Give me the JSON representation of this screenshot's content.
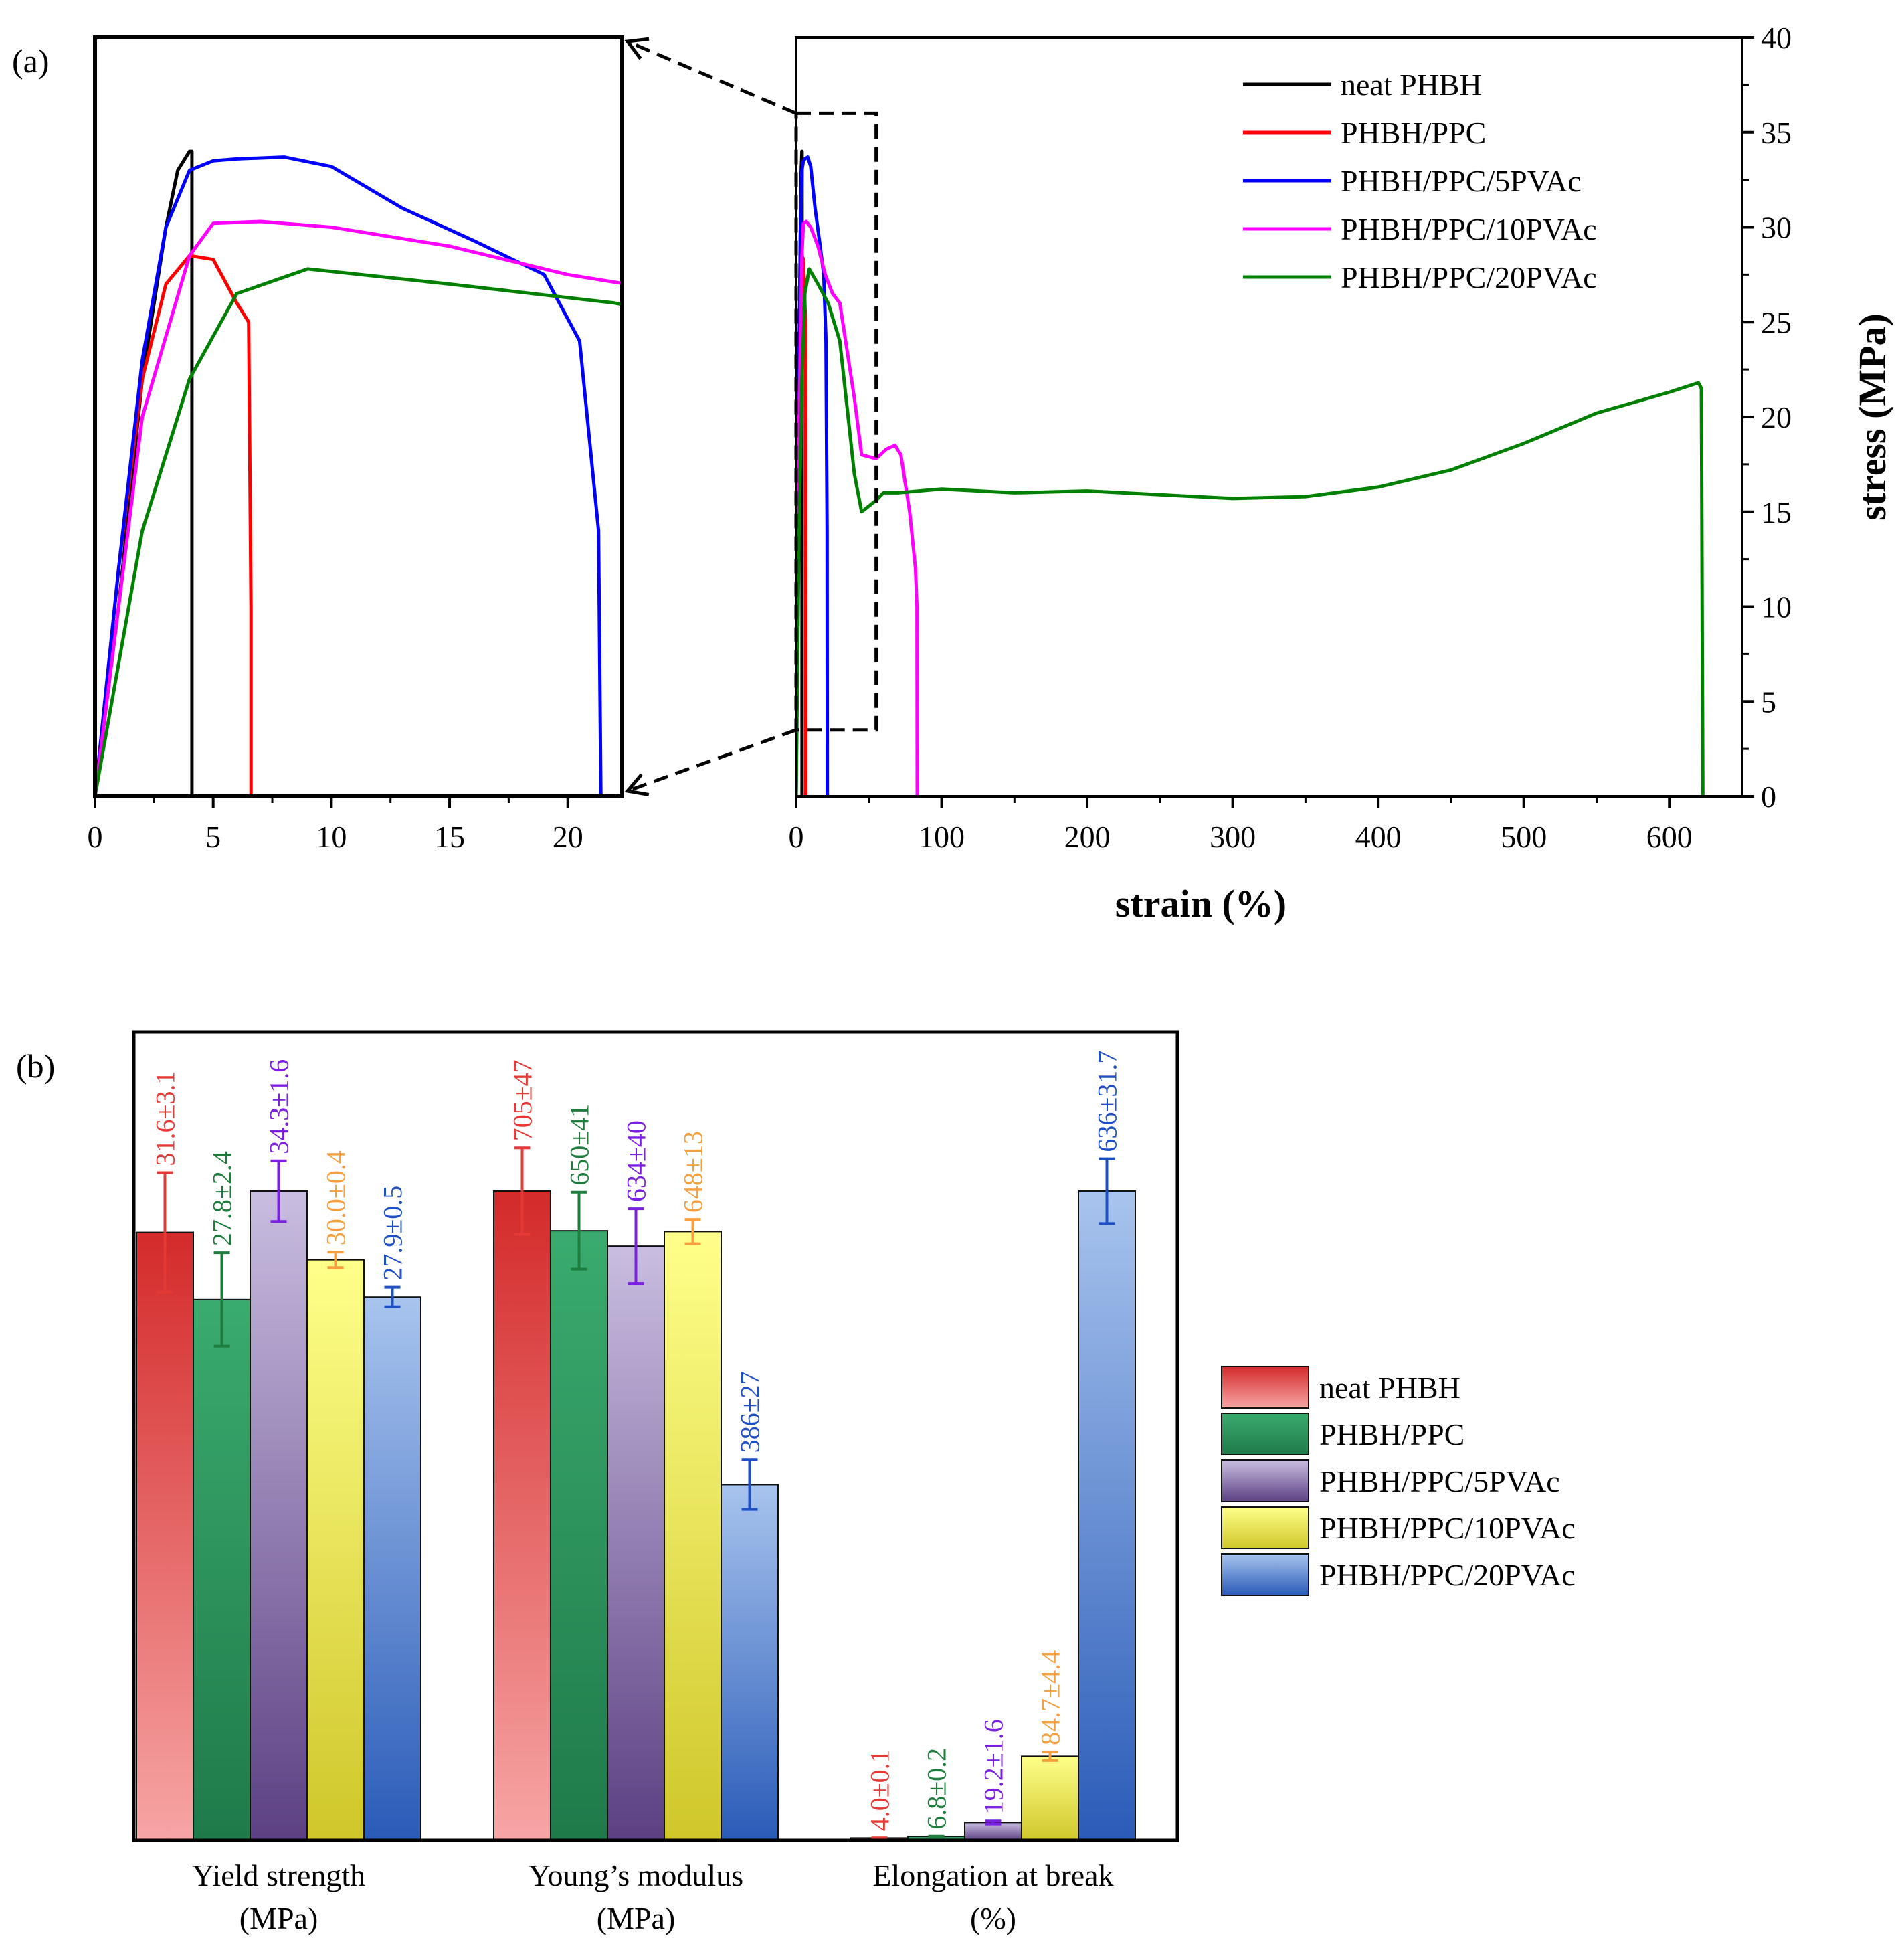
{
  "panel_a": {
    "label": "(a)",
    "inset": {
      "xlim": [
        0,
        22.3
      ],
      "ylim": [
        0,
        40
      ],
      "x_ticks": [
        "0",
        "5",
        "10",
        "15",
        "20"
      ]
    },
    "main": {
      "xlim": [
        0,
        650
      ],
      "ylim": [
        0,
        40
      ],
      "x_ticks": [
        "0",
        "100",
        "200",
        "300",
        "400",
        "500",
        "600"
      ],
      "y_ticks": [
        "0",
        "5",
        "10",
        "15",
        "20",
        "25",
        "30",
        "35",
        "40"
      ],
      "xlabel": "strain (%)",
      "ylabel": "stress (MPa)",
      "zoom_box": {
        "x": [
          0,
          55
        ],
        "y": [
          3.5,
          36
        ]
      }
    },
    "legend": [
      {
        "name": "neat PHBH",
        "color": "#000000"
      },
      {
        "name": "PHBH/PPC",
        "color": "#ff0000"
      },
      {
        "name": "PHBH/PPC/5PVAc",
        "color": "#0000ff"
      },
      {
        "name": "PHBH/PPC/10PVAc",
        "color": "#ff00ff"
      },
      {
        "name": "PHBH/PPC/20PVAc",
        "color": "#008000"
      }
    ]
  },
  "panel_b": {
    "label": "(b)",
    "group_labels": [
      [
        "Yield strength",
        "(MPa)"
      ],
      [
        "Young’s modulus",
        "(MPa)"
      ],
      [
        "Elongation at break",
        "(%)"
      ]
    ],
    "legend": [
      {
        "name": "neat PHBH",
        "top": "#d42a2a",
        "bottom": "#f7a5a5",
        "text_color": "#e53935"
      },
      {
        "name": "PHBH/PPC",
        "top": "#3aab6e",
        "bottom": "#1f7a4a",
        "text_color": "#1e7d3c"
      },
      {
        "name": "PHBH/PPC/5PVAc",
        "top": "#c9bde0",
        "bottom": "#5c4083",
        "text_color": "#7b1fe0"
      },
      {
        "name": "PHBH/PPC/10PVAc",
        "top": "#ffff8a",
        "bottom": "#cfc72a",
        "text_color": "#f5a040"
      },
      {
        "name": "PHBH/PPC/20PVAc",
        "top": "#a8c4ee",
        "bottom": "#2a5bb8",
        "text_color": "#1f4fc4"
      }
    ]
  },
  "chart_data": [
    {
      "type": "line",
      "title": "",
      "xlabel": "strain (%)",
      "ylabel": "stress (MPa)",
      "xlim": [
        0,
        650
      ],
      "ylim": [
        0,
        40
      ],
      "series": [
        {
          "name": "neat PHBH",
          "color": "#000000",
          "x": [
            0,
            1,
            2,
            3,
            3.5,
            4,
            4.1,
            4.1
          ],
          "y": [
            0,
            10,
            22,
            30,
            33,
            34,
            34,
            0
          ]
        },
        {
          "name": "PHBH/PPC",
          "color": "#ff0000",
          "x": [
            0,
            1,
            2,
            3,
            4,
            5,
            6,
            6.5,
            6.6,
            6.6
          ],
          "y": [
            0,
            12,
            22,
            27,
            28.5,
            28.3,
            26,
            25,
            10,
            0
          ]
        },
        {
          "name": "PHBH/PPC/5PVAc",
          "color": "#0000ff",
          "x": [
            0,
            1,
            2,
            3,
            4,
            5,
            6,
            8,
            10,
            13,
            16,
            19,
            20.5,
            21.3,
            21.4,
            22
          ],
          "y": [
            0,
            12,
            23,
            30,
            33,
            33.5,
            33.6,
            33.7,
            33.2,
            31,
            29.3,
            27.5,
            24,
            14,
            0,
            0
          ]
        },
        {
          "name": "PHBH/PPC/10PVAc",
          "color": "#ff00ff",
          "x": [
            0,
            2,
            4,
            5,
            7,
            10,
            15,
            20,
            25,
            30,
            40,
            45,
            55,
            62,
            68,
            72,
            78,
            82,
            83,
            83.2
          ],
          "y": [
            0,
            20,
            28.5,
            30.2,
            30.3,
            30,
            29,
            27.5,
            26.5,
            26,
            21,
            18,
            17.8,
            18.3,
            18.5,
            18,
            15,
            12,
            10,
            0
          ]
        },
        {
          "name": "PHBH/PPC/20PVAc",
          "color": "#008000",
          "x": [
            0,
            2,
            4,
            6,
            9,
            15,
            22,
            30,
            40,
            45,
            55,
            60,
            70,
            100,
            150,
            200,
            250,
            300,
            350,
            400,
            450,
            500,
            550,
            600,
            620,
            622,
            623
          ],
          "y": [
            0,
            14,
            22,
            26.5,
            27.8,
            27,
            26,
            24,
            17,
            15,
            15.6,
            16,
            16,
            16.2,
            16,
            16.1,
            15.9,
            15.7,
            15.8,
            16.3,
            17.2,
            18.6,
            20.2,
            21.3,
            21.8,
            21.5,
            0
          ]
        }
      ]
    },
    {
      "type": "bar",
      "title": "",
      "xlabel": "",
      "ylabel": "",
      "categories": [
        "Yield strength (MPa)",
        "Young’s modulus (MPa)",
        "Elongation at break (%)"
      ],
      "ylim": [
        0,
        1
      ],
      "series": [
        {
          "name": "neat PHBH",
          "values": [
            31.6,
            705,
            4.0
          ],
          "errors": [
            3.1,
            47,
            0.1
          ],
          "labels": [
            "31.6±3.1",
            "705±47",
            "4.0±0.1"
          ],
          "heights": [
            0.752,
            0.803,
            0.003
          ]
        },
        {
          "name": "PHBH/PPC",
          "values": [
            27.8,
            650,
            6.8
          ],
          "errors": [
            2.4,
            41,
            0.2
          ],
          "labels": [
            "27.8±2.4",
            "650±41",
            "6.8±0.2"
          ],
          "heights": [
            0.669,
            0.754,
            0.005
          ]
        },
        {
          "name": "PHBH/PPC/5PVAc",
          "values": [
            34.3,
            634,
            19.2
          ],
          "errors": [
            1.6,
            40,
            1.6
          ],
          "labels": [
            "34.3±1.6",
            "634±40",
            "19.2±1.6"
          ],
          "heights": [
            0.803,
            0.735,
            0.022
          ]
        },
        {
          "name": "PHBH/PPC/10PVAc",
          "values": [
            30.0,
            648,
            84.7
          ],
          "errors": [
            0.4,
            13,
            4.4
          ],
          "labels": [
            "30.0±0.4",
            "648±13",
            "84.7±4.4"
          ],
          "heights": [
            0.718,
            0.753,
            0.104
          ]
        },
        {
          "name": "PHBH/PPC/20PVAc",
          "values": [
            27.9,
            386,
            636
          ],
          "errors": [
            0.5,
            27,
            31.7
          ],
          "labels": [
            "27.9±0.5",
            "386±27",
            "636±31.7"
          ],
          "heights": [
            0.672,
            0.44,
            0.803
          ]
        }
      ]
    }
  ]
}
